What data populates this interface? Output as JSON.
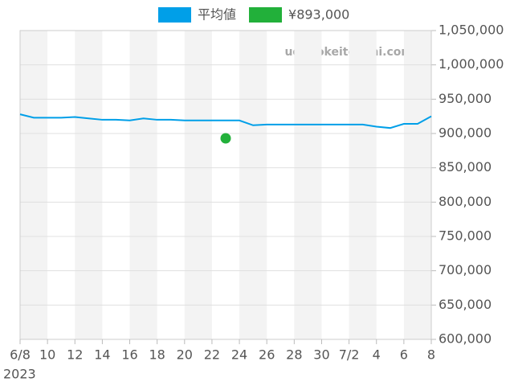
{
  "chart_data": {
    "type": "line",
    "watermark": "udedokeitoushi.com",
    "x_year_label": "2023",
    "xlim": [
      "2023-06-08",
      "2023-07-08"
    ],
    "xticks": [
      {
        "value": "2023-06-08",
        "label": "6/8"
      },
      {
        "value": "2023-06-10",
        "label": "10"
      },
      {
        "value": "2023-06-12",
        "label": "12"
      },
      {
        "value": "2023-06-14",
        "label": "14"
      },
      {
        "value": "2023-06-16",
        "label": "16"
      },
      {
        "value": "2023-06-18",
        "label": "18"
      },
      {
        "value": "2023-06-20",
        "label": "20"
      },
      {
        "value": "2023-06-22",
        "label": "22"
      },
      {
        "value": "2023-06-24",
        "label": "24"
      },
      {
        "value": "2023-06-26",
        "label": "26"
      },
      {
        "value": "2023-06-28",
        "label": "28"
      },
      {
        "value": "2023-06-30",
        "label": "30"
      },
      {
        "value": "2023-07-02",
        "label": "7/2"
      },
      {
        "value": "2023-07-04",
        "label": "4"
      },
      {
        "value": "2023-07-06",
        "label": "6"
      },
      {
        "value": "2023-07-08",
        "label": "8"
      }
    ],
    "ylim": [
      600000,
      1050000
    ],
    "yticks": [
      {
        "value": 600000,
        "label": "600,000"
      },
      {
        "value": 650000,
        "label": "650,000"
      },
      {
        "value": 700000,
        "label": "700,000"
      },
      {
        "value": 750000,
        "label": "750,000"
      },
      {
        "value": 800000,
        "label": "800,000"
      },
      {
        "value": 850000,
        "label": "850,000"
      },
      {
        "value": 900000,
        "label": "900,000"
      },
      {
        "value": 950000,
        "label": "950,000"
      },
      {
        "value": 1000000,
        "label": "1,000,000"
      },
      {
        "value": 1050000,
        "label": "1,050,000"
      }
    ],
    "grid": true,
    "legend": "top",
    "series": [
      {
        "name": "平均値",
        "color": "#009fe8",
        "type": "line",
        "x": [
          "2023-06-08",
          "2023-06-09",
          "2023-06-10",
          "2023-06-11",
          "2023-06-12",
          "2023-06-13",
          "2023-06-14",
          "2023-06-15",
          "2023-06-16",
          "2023-06-17",
          "2023-06-18",
          "2023-06-19",
          "2023-06-20",
          "2023-06-21",
          "2023-06-22",
          "2023-06-23",
          "2023-06-24",
          "2023-06-25",
          "2023-06-26",
          "2023-06-27",
          "2023-06-28",
          "2023-06-29",
          "2023-06-30",
          "2023-07-01",
          "2023-07-02",
          "2023-07-03",
          "2023-07-04",
          "2023-07-05",
          "2023-07-06",
          "2023-07-07",
          "2023-07-08"
        ],
        "values": [
          928000,
          923000,
          923000,
          923000,
          924000,
          922000,
          920000,
          920000,
          919000,
          922000,
          920000,
          920000,
          919000,
          919000,
          919000,
          919000,
          919000,
          912000,
          913000,
          913000,
          913000,
          913000,
          913000,
          913000,
          913000,
          913000,
          910000,
          908000,
          914000,
          914000,
          925000
        ]
      },
      {
        "name": "¥893,000",
        "color": "#22b03a",
        "type": "scatter",
        "x": [
          "2023-06-23"
        ],
        "values": [
          893000
        ]
      }
    ]
  }
}
